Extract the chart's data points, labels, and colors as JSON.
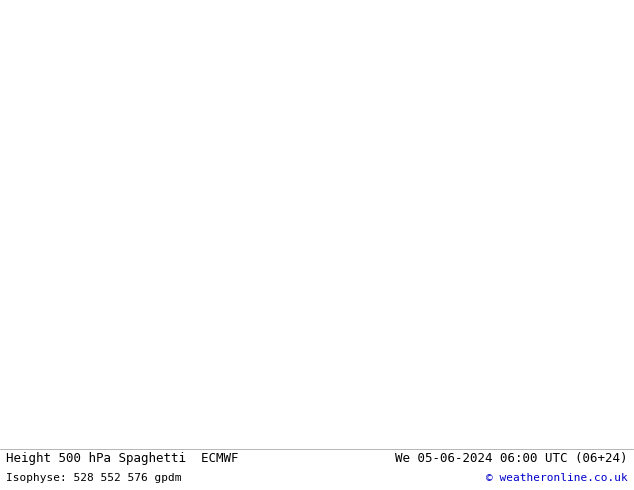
{
  "title_left": "Height 500 hPa Spaghetti  ECMWF",
  "title_right": "We 05-06-2024 06:00 UTC (06+24)",
  "subtitle_left": "Isophyse: 528 552 576 gpdm",
  "subtitle_right": "© weatheronline.co.uk",
  "bg_color": "#ffffff",
  "land_color": "#b5d9a0",
  "ocean_color": "#d0d0d0",
  "lake_color": "#d0d0d0",
  "border_color": "#555555",
  "coast_color": "#555555",
  "state_color": "#555555",
  "text_color": "#000000",
  "copyright_color": "#0000cc",
  "figsize": [
    6.34,
    4.9
  ],
  "dpi": 100,
  "extent": [
    -170,
    10,
    12,
    88
  ],
  "contour_colors": [
    "#ff0000",
    "#ff8800",
    "#ffff00",
    "#00bb00",
    "#00cccc",
    "#0000ff",
    "#cc00cc",
    "#ff69b4",
    "#884400",
    "#00aa44"
  ],
  "contour_levels": [
    528,
    552,
    576
  ],
  "n_members": 10,
  "font_family": "monospace",
  "title_fontsize": 9,
  "footer_fontsize": 8,
  "linewidth": 1.2
}
